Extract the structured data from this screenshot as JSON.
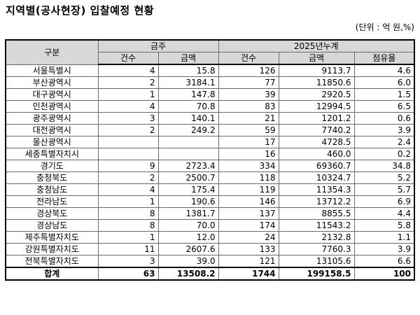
{
  "title": "지역별(공사현장) 입찰예정 현황",
  "unit": "(단위 : 억  원,%)",
  "headers": {
    "region": "구분",
    "group_week": "금주",
    "group_cum": "2025년누계",
    "count": "건수",
    "amount": "금액",
    "count2": "건수",
    "amount2": "금액",
    "share": "점유율"
  },
  "rows": [
    {
      "region": "서울특별시",
      "week_count": "4",
      "week_amount": "15.8",
      "cum_count": "126",
      "cum_amount": "9113.7",
      "share": "4.6"
    },
    {
      "region": "부산광역시",
      "week_count": "2",
      "week_amount": "3184.1",
      "cum_count": "77",
      "cum_amount": "11850.6",
      "share": "6.0"
    },
    {
      "region": "대구광역시",
      "week_count": "1",
      "week_amount": "147.8",
      "cum_count": "39",
      "cum_amount": "2920.5",
      "share": "1.5"
    },
    {
      "region": "인천광역시",
      "week_count": "4",
      "week_amount": "70.8",
      "cum_count": "83",
      "cum_amount": "12994.5",
      "share": "6.5"
    },
    {
      "region": "광주광역시",
      "week_count": "3",
      "week_amount": "140.1",
      "cum_count": "21",
      "cum_amount": "1201.2",
      "share": "0.6"
    },
    {
      "region": "대전광역시",
      "week_count": "2",
      "week_amount": "249.2",
      "cum_count": "59",
      "cum_amount": "7740.2",
      "share": "3.9"
    },
    {
      "region": "울산광역시",
      "week_count": "",
      "week_amount": "",
      "cum_count": "17",
      "cum_amount": "4728.5",
      "share": "2.4"
    },
    {
      "region": "세종특별자치시",
      "week_count": "",
      "week_amount": "",
      "cum_count": "16",
      "cum_amount": "460.0",
      "share": "0.2"
    },
    {
      "region": "경기도",
      "week_count": "9",
      "week_amount": "2723.4",
      "cum_count": "334",
      "cum_amount": "69360.7",
      "share": "34.8"
    },
    {
      "region": "충청북도",
      "week_count": "2",
      "week_amount": "2500.7",
      "cum_count": "118",
      "cum_amount": "10324.7",
      "share": "5.2"
    },
    {
      "region": "충청남도",
      "week_count": "4",
      "week_amount": "175.4",
      "cum_count": "119",
      "cum_amount": "11354.3",
      "share": "5.7"
    },
    {
      "region": "전라남도",
      "week_count": "1",
      "week_amount": "190.6",
      "cum_count": "146",
      "cum_amount": "13712.2",
      "share": "6.9"
    },
    {
      "region": "경상북도",
      "week_count": "8",
      "week_amount": "1381.7",
      "cum_count": "137",
      "cum_amount": "8855.5",
      "share": "4.4"
    },
    {
      "region": "경상남도",
      "week_count": "8",
      "week_amount": "70.0",
      "cum_count": "174",
      "cum_amount": "11543.2",
      "share": "5.8"
    },
    {
      "region": "제주특별자치도",
      "week_count": "1",
      "week_amount": "12.0",
      "cum_count": "24",
      "cum_amount": "2132.8",
      "share": "1.1"
    },
    {
      "region": "강원특별자치도",
      "week_count": "11",
      "week_amount": "2607.6",
      "cum_count": "133",
      "cum_amount": "7760.3",
      "share": "3.9"
    },
    {
      "region": "전북특별자치도",
      "week_count": "3",
      "week_amount": "39.0",
      "cum_count": "121",
      "cum_amount": "13105.6",
      "share": "6.6"
    }
  ],
  "total": {
    "region": "합계",
    "week_count": "63",
    "week_amount": "13508.2",
    "cum_count": "1744",
    "cum_amount": "199158.5",
    "share": "100"
  }
}
